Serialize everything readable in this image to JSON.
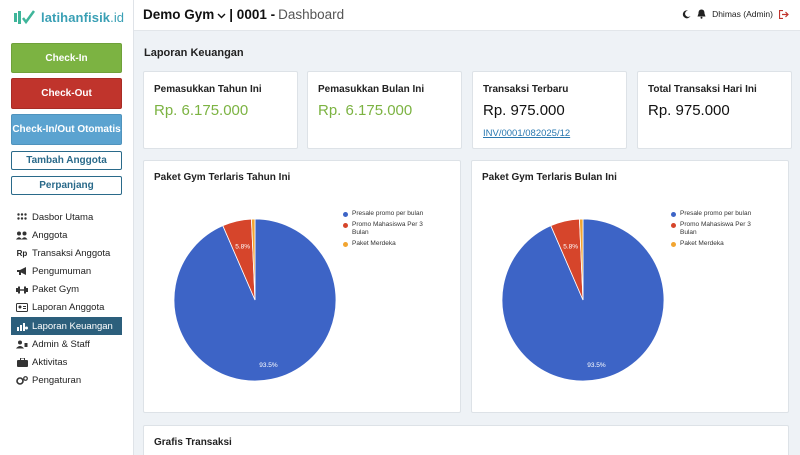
{
  "brand": {
    "name_bold": "latihanfisik",
    "name_suffix": ".id"
  },
  "header": {
    "gym_name": "Demo Gym",
    "gym_code": "| 0001 -",
    "breadcrumb": "Dashboard",
    "user": "Dhimas (Admin)"
  },
  "sidebar": {
    "buttons": {
      "checkin": "Check-In",
      "checkout": "Check-Out",
      "auto": "Check-In/Out Otomatis",
      "tambah": "Tambah Anggota",
      "perpanjang": "Perpanjang"
    },
    "items": [
      {
        "label": "Dasbor Utama",
        "icon": "dashboard-icon"
      },
      {
        "label": "Anggota",
        "icon": "users-icon"
      },
      {
        "label": "Transaksi Anggota",
        "icon": "rupiah-icon"
      },
      {
        "label": "Pengumuman",
        "icon": "megaphone-icon"
      },
      {
        "label": "Paket Gym",
        "icon": "dumbbell-icon"
      },
      {
        "label": "Laporan Anggota",
        "icon": "id-card-icon"
      },
      {
        "label": "Laporan Keuangan",
        "icon": "chart-icon",
        "active": true
      },
      {
        "label": "Admin & Staff",
        "icon": "admin-icon"
      },
      {
        "label": "Aktivitas",
        "icon": "briefcase-icon"
      },
      {
        "label": "Pengaturan",
        "icon": "gear-icon"
      }
    ]
  },
  "main": {
    "section_title": "Laporan Keuangan",
    "stats": [
      {
        "title": "Pemasukkan Tahun Ini",
        "value": "Rp. 6.175.000"
      },
      {
        "title": "Pemasukkan Bulan Ini",
        "value": "Rp. 6.175.000"
      },
      {
        "title": "Transaksi Terbaru",
        "value": "Rp. 975.000",
        "link": "INV/0001/082025/12"
      },
      {
        "title": "Total Transaksi Hari Ini",
        "value": "Rp. 975.000"
      }
    ],
    "bottom_title": "Grafis Transaksi"
  },
  "colors": {
    "accent_green": "#7cb342",
    "danger": "#c0342c",
    "info": "#5ba3d0",
    "nav_active": "#2c5f7c"
  },
  "chart_data": [
    {
      "type": "pie",
      "title": "Paket Gym Terlaris Tahun Ini",
      "categories": [
        "Presale promo per bulan",
        "Promo Mahasiswa Per 3 Bulan",
        "Paket Merdeka"
      ],
      "values": [
        93.5,
        5.8,
        0.7
      ],
      "labels": [
        "93.5%",
        "5.8%",
        ""
      ],
      "colors": [
        "#3d64c6",
        "#d6452b",
        "#f2a531"
      ],
      "legend": "right"
    },
    {
      "type": "pie",
      "title": "Paket Gym Terlaris Bulan Ini",
      "categories": [
        "Presale promo per bulan",
        "Promo Mahasiswa Per 3 Bulan",
        "Paket Merdeka"
      ],
      "values": [
        93.5,
        5.8,
        0.7
      ],
      "labels": [
        "93.5%",
        "5.8%",
        ""
      ],
      "colors": [
        "#3d64c6",
        "#d6452b",
        "#f2a531"
      ],
      "legend": "right"
    }
  ]
}
